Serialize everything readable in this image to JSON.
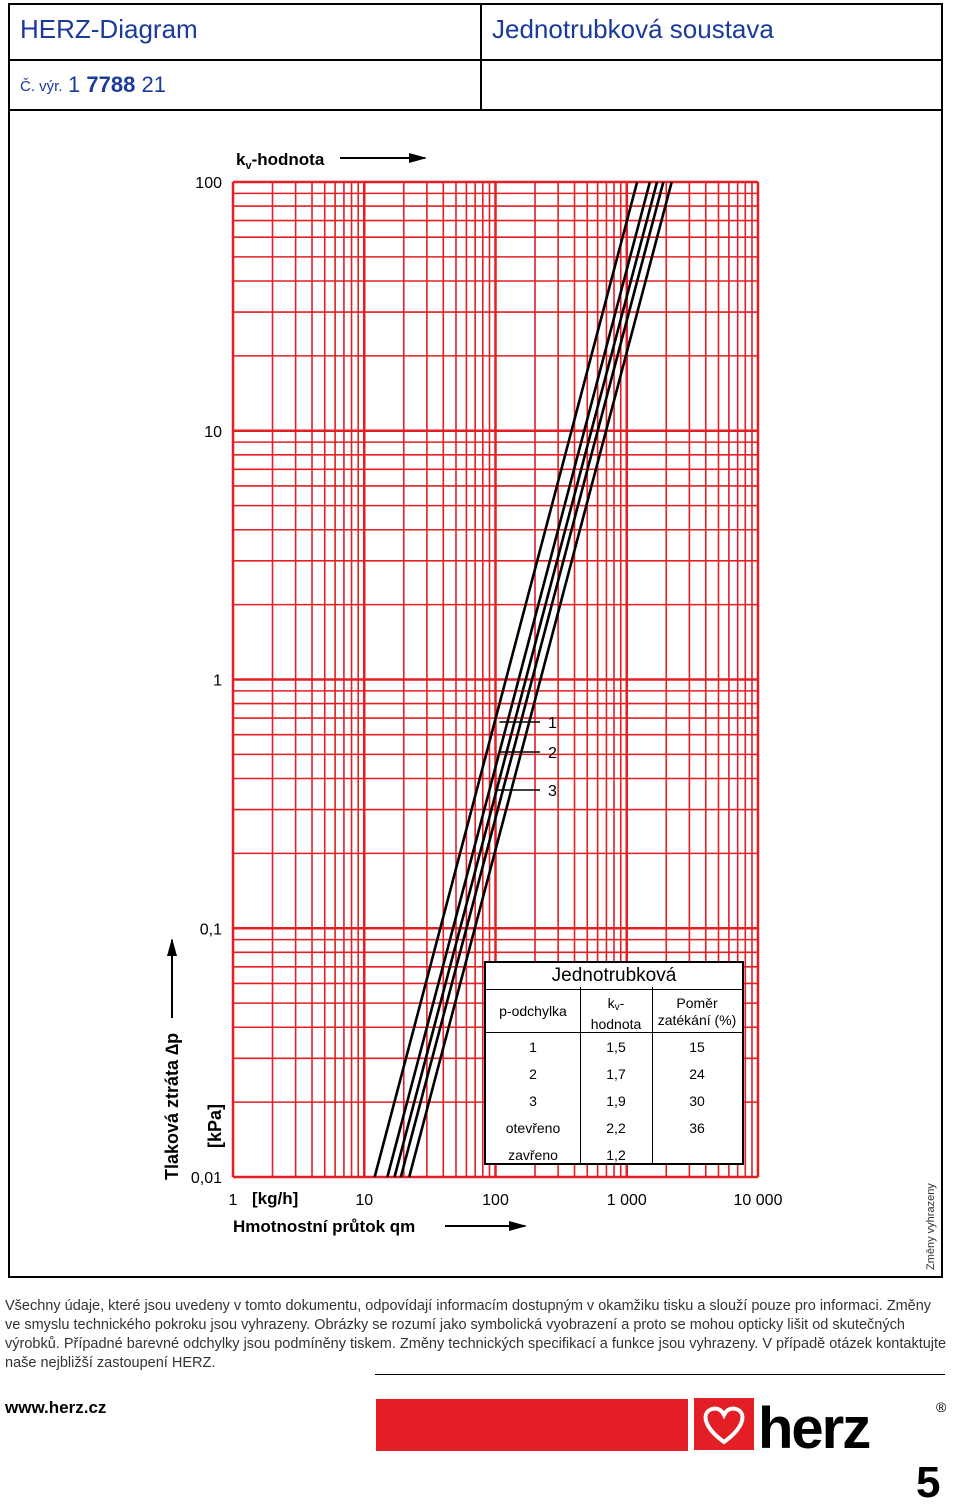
{
  "header": {
    "title_left": "HERZ-Diagram",
    "title_right": "Jednotrubková soustava",
    "product_no_label": "Č. výr.",
    "product_no_prefix": "1",
    "product_no_bold": "7788",
    "product_no_suffix": "21"
  },
  "side_note": "Změny vyhrazeny",
  "colors": {
    "grid": "#e31e24",
    "curves": "#000000",
    "header_text": "#1a3a9c",
    "brand_red": "#e31e24"
  },
  "chart_data": {
    "type": "line",
    "title": "",
    "xlabel": "Hmotnostní průtok qm",
    "xunit": "[kg/h]",
    "ylabel": "Tlaková ztráta Δp",
    "yunit": "[kPa]",
    "top_label": "kv-hodnota",
    "x_scale": "log",
    "y_scale": "log",
    "xlim": [
      1,
      10000
    ],
    "ylim": [
      0.01,
      100
    ],
    "x_ticks": [
      "1",
      "10",
      "100",
      "1 000",
      "10 000"
    ],
    "y_ticks": [
      "100",
      "10",
      "1",
      "0,1",
      "0,01"
    ],
    "grid": true,
    "series": [
      {
        "name": "1",
        "kv": 1.5
      },
      {
        "name": "2",
        "kv": 1.7
      },
      {
        "name": "3",
        "kv": 1.9
      },
      {
        "name": "otevřeno",
        "kv": 2.2
      },
      {
        "name": "zavřeno",
        "kv": 1.2
      }
    ],
    "curve_markers": [
      "1",
      "2",
      "3"
    ]
  },
  "kv_table": {
    "caption": "Jednotrubková",
    "headers": [
      "p-odchylka",
      "kv-hodnota",
      "Poměr zatékání (%)"
    ],
    "rows": [
      [
        "1",
        "1,5",
        "15"
      ],
      [
        "2",
        "1,7",
        "24"
      ],
      [
        "3",
        "1,9",
        "30"
      ],
      [
        "otevřeno",
        "2,2",
        "36"
      ],
      [
        "zavřeno",
        "1,2",
        ""
      ]
    ]
  },
  "disclaimer": "Všechny údaje, které jsou uvedeny v tomto dokumentu, odpovídají informacím dostupným v okamžiku tisku a slouží pouze pro informaci. Změny ve smyslu technického pokroku jsou vyhrazeny. Obrázky se rozumí jako symbolická vyobrazení a proto se mohou opticky lišit od skutečných výrobků. Případné barevné odchylky jsou podmíněny tiskem. Změny technických specifikací a funkce jsou vyhrazeny. V případě otázek kontaktujte naše nejbližší zastoupení HERZ.",
  "footer": {
    "website": "www.herz.cz",
    "brand": "herz",
    "registered": "®",
    "page": "5"
  }
}
